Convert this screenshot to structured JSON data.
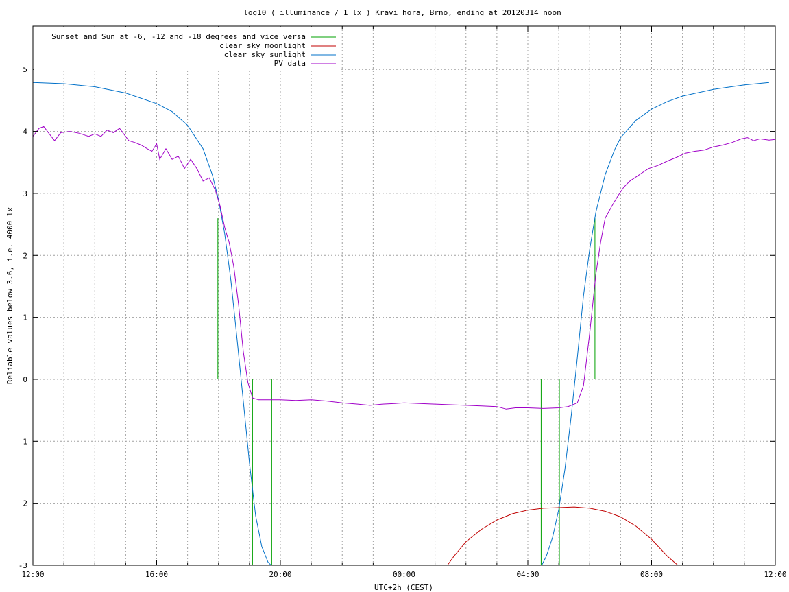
{
  "chart_data": {
    "type": "line",
    "title": "log10 ( illuminance / 1 lx ) Kravi hora, Brno, ending at 20120314 noon",
    "xlabel": "UTC+2h (CEST)",
    "ylabel": "Reliable values below 3.6, i.e. 4000 lx",
    "x_unit": "hour of day (12:00 start, 36:00 = next-day 12:00)",
    "xlim": [
      12,
      36
    ],
    "ylim": [
      -3,
      5.7
    ],
    "x_ticks": [
      {
        "value": 12,
        "label": "12:00"
      },
      {
        "value": 16,
        "label": "16:00"
      },
      {
        "value": 20,
        "label": "20:00"
      },
      {
        "value": 24,
        "label": "00:00"
      },
      {
        "value": 28,
        "label": "04:00"
      },
      {
        "value": 32,
        "label": "08:00"
      },
      {
        "value": 36,
        "label": "12:00"
      }
    ],
    "x_minor_grid_step": 1,
    "y_ticks": [
      {
        "value": -3,
        "label": "-3"
      },
      {
        "value": -2,
        "label": "-2"
      },
      {
        "value": -1,
        "label": "-1"
      },
      {
        "value": 0,
        "label": "0"
      },
      {
        "value": 1,
        "label": "1"
      },
      {
        "value": 2,
        "label": "2"
      },
      {
        "value": 3,
        "label": "3"
      },
      {
        "value": 4,
        "label": "4"
      },
      {
        "value": 5,
        "label": "5"
      }
    ],
    "grid": true,
    "legend_position": "top-left",
    "series": [
      {
        "name": "Sunset and Sun at -6, -12 and -18 degrees and vice versa",
        "color": "#00a000",
        "kind": "vlines",
        "lines": [
          {
            "x": 17.98,
            "y0": 0,
            "y1": 2.6
          },
          {
            "x": 19.1,
            "y0": -3,
            "y1": 0
          },
          {
            "x": 19.72,
            "y0": -3,
            "y1": 0
          },
          {
            "x": 28.43,
            "y0": -3,
            "y1": 0
          },
          {
            "x": 29.02,
            "y0": -3,
            "y1": 0
          },
          {
            "x": 30.17,
            "y0": 0,
            "y1": 2.6
          }
        ]
      },
      {
        "name": "clear sky moonlight",
        "color": "#c00000",
        "kind": "line",
        "points": [
          [
            25.4,
            -3.0
          ],
          [
            25.6,
            -2.86
          ],
          [
            26.0,
            -2.62
          ],
          [
            26.5,
            -2.42
          ],
          [
            27.0,
            -2.27
          ],
          [
            27.5,
            -2.17
          ],
          [
            28.0,
            -2.11
          ],
          [
            28.5,
            -2.08
          ],
          [
            29.0,
            -2.07
          ],
          [
            29.5,
            -2.06
          ],
          [
            30.0,
            -2.08
          ],
          [
            30.5,
            -2.13
          ],
          [
            31.0,
            -2.22
          ],
          [
            31.5,
            -2.37
          ],
          [
            32.0,
            -2.58
          ],
          [
            32.5,
            -2.85
          ],
          [
            32.85,
            -3.0
          ]
        ]
      },
      {
        "name": "clear sky sunlight",
        "color": "#0070c8",
        "kind": "line",
        "points": [
          [
            12.0,
            4.79
          ],
          [
            13.0,
            4.77
          ],
          [
            14.0,
            4.72
          ],
          [
            15.0,
            4.62
          ],
          [
            16.0,
            4.45
          ],
          [
            16.5,
            4.32
          ],
          [
            17.0,
            4.1
          ],
          [
            17.5,
            3.72
          ],
          [
            17.8,
            3.3
          ],
          [
            18.0,
            2.9
          ],
          [
            18.2,
            2.35
          ],
          [
            18.4,
            1.6
          ],
          [
            18.6,
            0.65
          ],
          [
            18.8,
            -0.35
          ],
          [
            19.0,
            -1.35
          ],
          [
            19.2,
            -2.2
          ],
          [
            19.4,
            -2.7
          ],
          [
            19.6,
            -2.95
          ],
          [
            19.7,
            -3.0
          ]
        ]
      },
      {
        "name": "clear sky sunlight (morning)",
        "color": "#0070c8",
        "kind": "line",
        "points": [
          [
            28.45,
            -3.0
          ],
          [
            28.6,
            -2.85
          ],
          [
            28.8,
            -2.55
          ],
          [
            29.0,
            -2.1
          ],
          [
            29.2,
            -1.45
          ],
          [
            29.4,
            -0.6
          ],
          [
            29.6,
            0.35
          ],
          [
            29.8,
            1.35
          ],
          [
            30.0,
            2.1
          ],
          [
            30.2,
            2.7
          ],
          [
            30.5,
            3.3
          ],
          [
            30.8,
            3.7
          ],
          [
            31.0,
            3.9
          ],
          [
            31.5,
            4.18
          ],
          [
            32.0,
            4.36
          ],
          [
            32.5,
            4.48
          ],
          [
            33.0,
            4.57
          ],
          [
            34.0,
            4.68
          ],
          [
            35.0,
            4.75
          ],
          [
            35.8,
            4.79
          ]
        ]
      },
      {
        "name": "PV data",
        "color": "#a000c8",
        "kind": "line",
        "points": [
          [
            12.0,
            3.92
          ],
          [
            12.2,
            4.05
          ],
          [
            12.35,
            4.08
          ],
          [
            12.5,
            3.98
          ],
          [
            12.7,
            3.85
          ],
          [
            12.9,
            3.98
          ],
          [
            13.2,
            4.0
          ],
          [
            13.5,
            3.97
          ],
          [
            13.8,
            3.92
          ],
          [
            14.0,
            3.96
          ],
          [
            14.2,
            3.92
          ],
          [
            14.4,
            4.02
          ],
          [
            14.6,
            3.98
          ],
          [
            14.8,
            4.05
          ],
          [
            14.95,
            3.95
          ],
          [
            15.1,
            3.85
          ],
          [
            15.3,
            3.82
          ],
          [
            15.5,
            3.78
          ],
          [
            15.7,
            3.72
          ],
          [
            15.85,
            3.68
          ],
          [
            16.0,
            3.8
          ],
          [
            16.1,
            3.55
          ],
          [
            16.3,
            3.72
          ],
          [
            16.5,
            3.55
          ],
          [
            16.7,
            3.6
          ],
          [
            16.9,
            3.4
          ],
          [
            17.1,
            3.55
          ],
          [
            17.3,
            3.4
          ],
          [
            17.5,
            3.2
          ],
          [
            17.7,
            3.25
          ],
          [
            17.9,
            3.05
          ],
          [
            18.05,
            2.8
          ],
          [
            18.2,
            2.45
          ],
          [
            18.35,
            2.2
          ],
          [
            18.5,
            1.8
          ],
          [
            18.65,
            1.2
          ],
          [
            18.8,
            0.45
          ],
          [
            18.95,
            -0.05
          ],
          [
            19.1,
            -0.3
          ],
          [
            19.3,
            -0.33
          ],
          [
            19.6,
            -0.33
          ],
          [
            20.0,
            -0.33
          ],
          [
            20.5,
            -0.34
          ],
          [
            21.0,
            -0.33
          ],
          [
            21.5,
            -0.35
          ],
          [
            22.0,
            -0.38
          ],
          [
            22.5,
            -0.4
          ],
          [
            22.9,
            -0.42
          ],
          [
            23.3,
            -0.4
          ],
          [
            23.7,
            -0.39
          ],
          [
            24.0,
            -0.38
          ],
          [
            24.5,
            -0.39
          ],
          [
            25.0,
            -0.4
          ],
          [
            25.5,
            -0.41
          ],
          [
            26.0,
            -0.42
          ],
          [
            26.5,
            -0.43
          ],
          [
            27.0,
            -0.44
          ],
          [
            27.3,
            -0.48
          ],
          [
            27.6,
            -0.46
          ],
          [
            28.0,
            -0.46
          ],
          [
            28.5,
            -0.47
          ],
          [
            29.0,
            -0.46
          ],
          [
            29.3,
            -0.44
          ],
          [
            29.6,
            -0.38
          ],
          [
            29.8,
            -0.1
          ],
          [
            30.0,
            0.75
          ],
          [
            30.2,
            1.7
          ],
          [
            30.35,
            2.2
          ],
          [
            30.5,
            2.6
          ],
          [
            30.7,
            2.78
          ],
          [
            30.9,
            2.95
          ],
          [
            31.1,
            3.1
          ],
          [
            31.3,
            3.2
          ],
          [
            31.6,
            3.3
          ],
          [
            31.9,
            3.4
          ],
          [
            32.2,
            3.45
          ],
          [
            32.5,
            3.52
          ],
          [
            32.8,
            3.58
          ],
          [
            33.1,
            3.65
          ],
          [
            33.4,
            3.68
          ],
          [
            33.7,
            3.7
          ],
          [
            34.0,
            3.75
          ],
          [
            34.3,
            3.78
          ],
          [
            34.6,
            3.82
          ],
          [
            34.9,
            3.88
          ],
          [
            35.1,
            3.9
          ],
          [
            35.3,
            3.85
          ],
          [
            35.5,
            3.88
          ],
          [
            35.8,
            3.86
          ],
          [
            36.0,
            3.87
          ]
        ]
      }
    ],
    "legend": [
      {
        "label": "Sunset and Sun at -6, -12 and -18 degrees and vice versa",
        "color": "#00a000"
      },
      {
        "label": "clear sky moonlight",
        "color": "#c00000"
      },
      {
        "label": "clear sky sunlight",
        "color": "#0070c8"
      },
      {
        "label": "PV data",
        "color": "#a000c8"
      }
    ]
  }
}
